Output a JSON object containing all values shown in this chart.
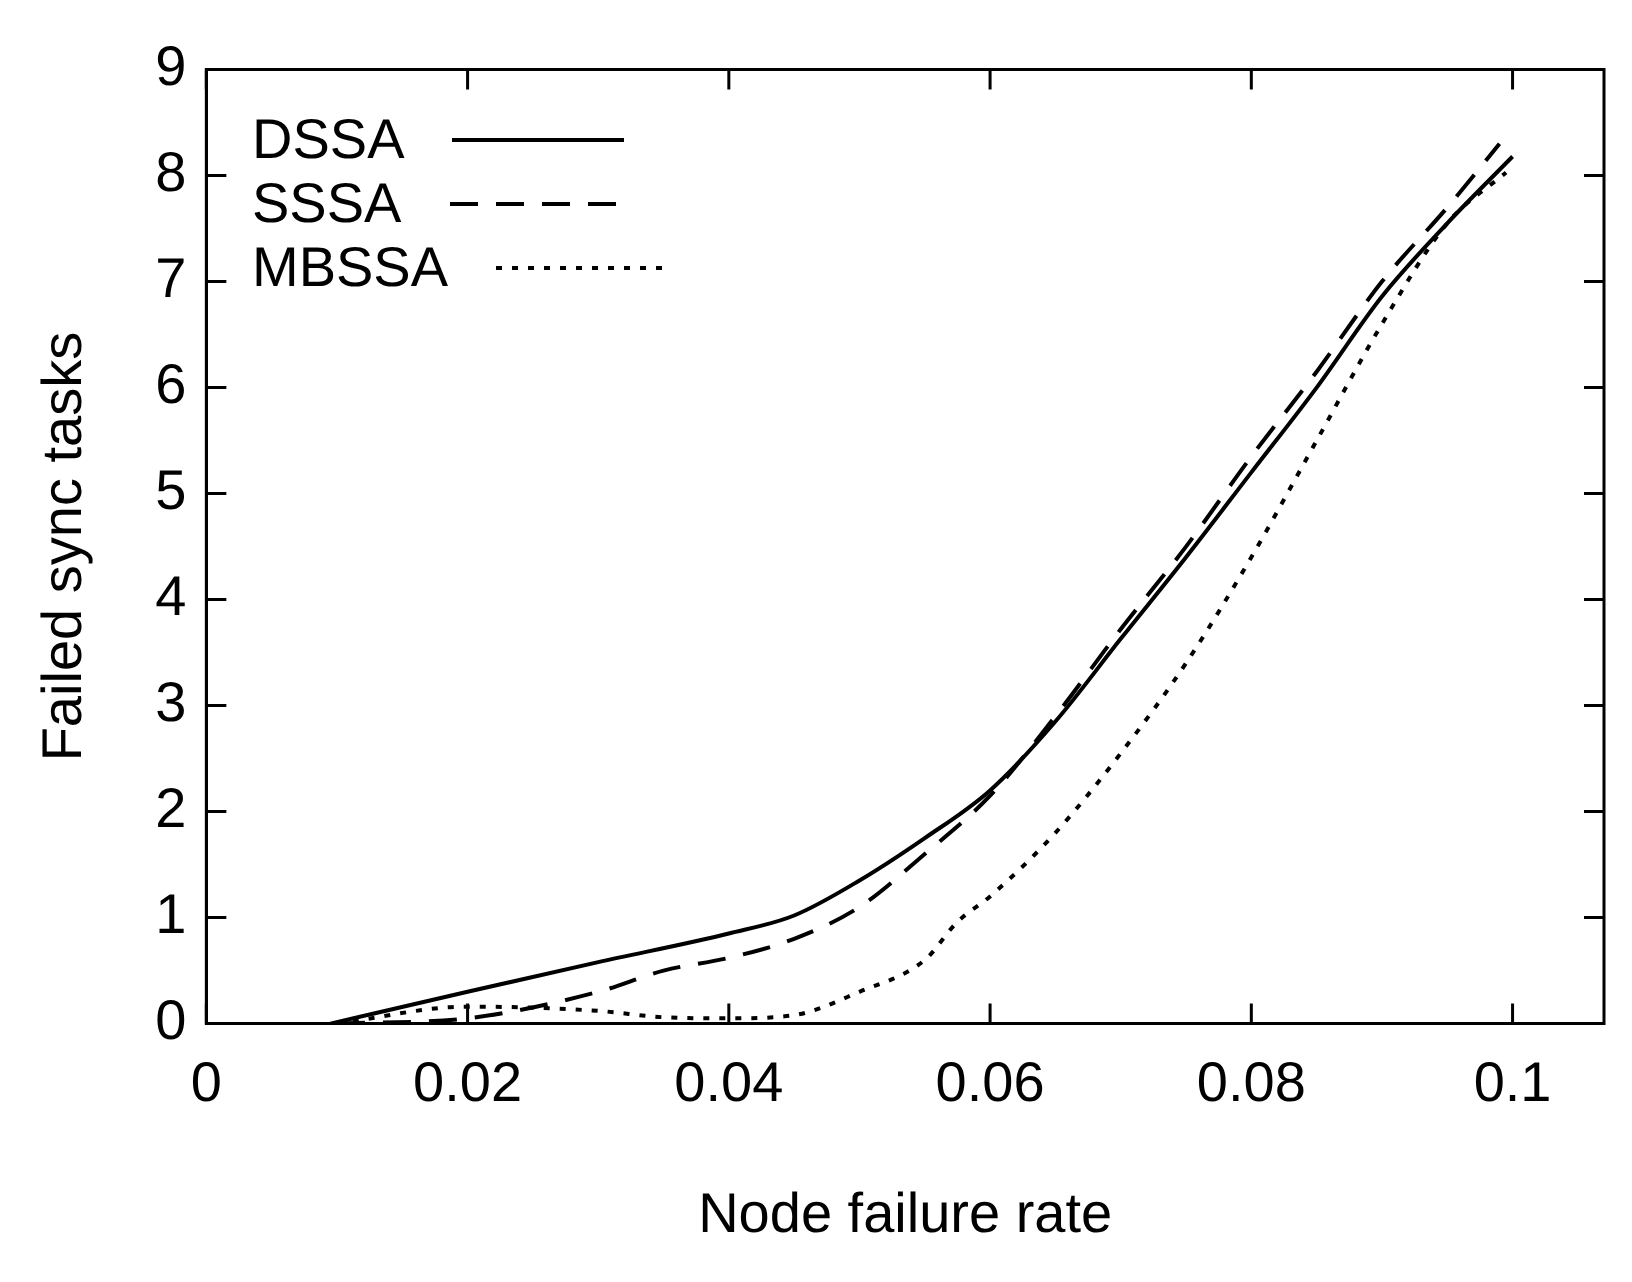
{
  "chart_data": {
    "type": "line",
    "xlabel": "Node failure rate",
    "ylabel": "Failed sync tasks",
    "xlim": [
      0,
      0.107
    ],
    "xticks": [
      0,
      0.02,
      0.04,
      0.06,
      0.08,
      0.1
    ],
    "ylim": [
      0,
      9
    ],
    "yticks": [
      0,
      1,
      2,
      3,
      4,
      5,
      6,
      7,
      8,
      9
    ],
    "grid": false,
    "legend": "top left",
    "marker": "none",
    "series": [
      {
        "name": "DSSA",
        "color": "#000000",
        "line_style": "solid",
        "x": [
          0.0095,
          0.02,
          0.03,
          0.04,
          0.045,
          0.05,
          0.055,
          0.06,
          0.065,
          0.07,
          0.075,
          0.08,
          0.085,
          0.09,
          0.095,
          0.1
        ],
        "values": [
          0,
          0.3,
          0.58,
          0.85,
          1.02,
          1.35,
          1.75,
          2.2,
          2.85,
          3.63,
          4.4,
          5.2,
          6.0,
          6.86,
          7.55,
          8.18
        ]
      },
      {
        "name": "SSSA",
        "color": "#000000",
        "line_style": "dashed",
        "x": [
          0.01,
          0.02,
          0.03,
          0.035,
          0.04,
          0.045,
          0.05,
          0.055,
          0.06,
          0.065,
          0.07,
          0.075,
          0.08,
          0.085,
          0.09,
          0.095,
          0.099
        ],
        "values": [
          0,
          0.05,
          0.3,
          0.5,
          0.62,
          0.8,
          1.1,
          1.6,
          2.15,
          2.9,
          3.72,
          4.5,
          5.35,
          6.15,
          7.0,
          7.7,
          8.3
        ]
      },
      {
        "name": "MBSSA",
        "color": "#000000",
        "line_style": "dotted",
        "x": [
          0.01,
          0.02,
          0.03,
          0.035,
          0.04,
          0.045,
          0.05,
          0.055,
          0.0575,
          0.06,
          0.065,
          0.07,
          0.075,
          0.08,
          0.085,
          0.09,
          0.095,
          0.0995
        ],
        "values": [
          0,
          0.16,
          0.12,
          0.06,
          0.05,
          0.08,
          0.3,
          0.6,
          0.96,
          1.2,
          1.8,
          2.55,
          3.4,
          4.4,
          5.5,
          6.6,
          7.55,
          8.03
        ]
      }
    ]
  }
}
